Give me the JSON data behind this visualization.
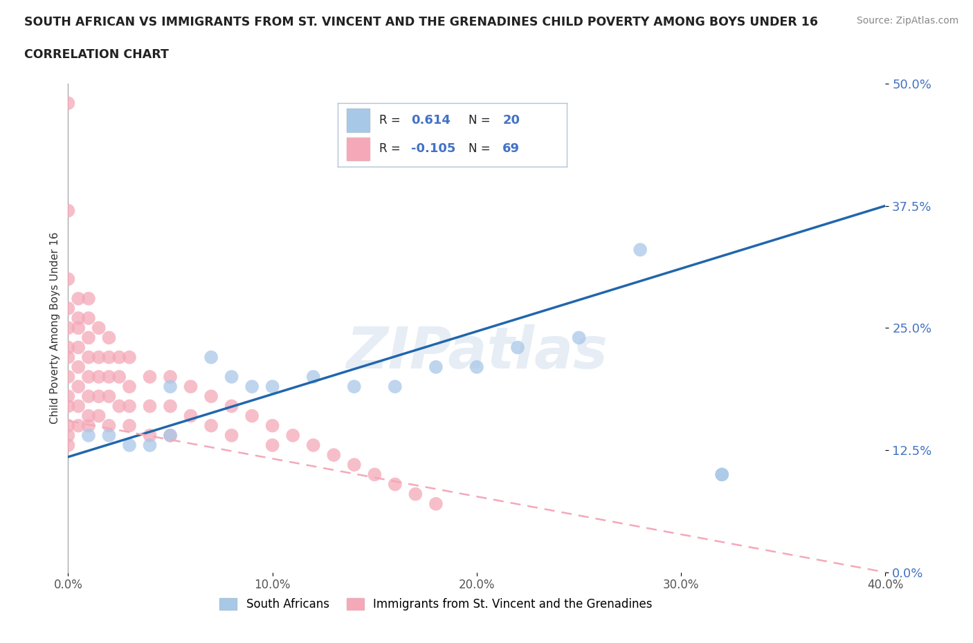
{
  "title": "SOUTH AFRICAN VS IMMIGRANTS FROM ST. VINCENT AND THE GRENADINES CHILD POVERTY AMONG BOYS UNDER 16",
  "subtitle": "CORRELATION CHART",
  "source": "Source: ZipAtlas.com",
  "ylabel": "Child Poverty Among Boys Under 16",
  "xlim": [
    0.0,
    0.4
  ],
  "ylim": [
    0.0,
    0.5
  ],
  "yticks": [
    0.0,
    0.125,
    0.25,
    0.375,
    0.5
  ],
  "ytick_labels": [
    "0.0%",
    "12.5%",
    "25.0%",
    "37.5%",
    "50.0%"
  ],
  "xticks": [
    0.0,
    0.1,
    0.2,
    0.3,
    0.4
  ],
  "xtick_labels": [
    "0.0%",
    "10.0%",
    "20.0%",
    "30.0%",
    "40.0%"
  ],
  "blue_color": "#a8c8e8",
  "pink_color": "#f4a8b8",
  "blue_line_color": "#2166ac",
  "pink_line_color": "#f4a8b8",
  "legend_blue_label": "South Africans",
  "legend_pink_label": "Immigrants from St. Vincent and the Grenadines",
  "r_blue": 0.614,
  "n_blue": 20,
  "r_pink": -0.105,
  "n_pink": 69,
  "blue_scatter_x": [
    0.01,
    0.02,
    0.03,
    0.04,
    0.05,
    0.05,
    0.07,
    0.08,
    0.09,
    0.1,
    0.12,
    0.14,
    0.16,
    0.18,
    0.2,
    0.22,
    0.25,
    0.28,
    0.32,
    0.32
  ],
  "blue_scatter_y": [
    0.14,
    0.14,
    0.13,
    0.13,
    0.14,
    0.19,
    0.22,
    0.2,
    0.19,
    0.19,
    0.2,
    0.19,
    0.19,
    0.21,
    0.21,
    0.23,
    0.24,
    0.33,
    0.1,
    0.1
  ],
  "pink_scatter_x": [
    0.0,
    0.0,
    0.0,
    0.0,
    0.0,
    0.0,
    0.0,
    0.0,
    0.0,
    0.0,
    0.0,
    0.0,
    0.005,
    0.005,
    0.005,
    0.005,
    0.005,
    0.005,
    0.005,
    0.005,
    0.01,
    0.01,
    0.01,
    0.01,
    0.01,
    0.01,
    0.01,
    0.01,
    0.015,
    0.015,
    0.015,
    0.015,
    0.015,
    0.02,
    0.02,
    0.02,
    0.02,
    0.02,
    0.025,
    0.025,
    0.025,
    0.03,
    0.03,
    0.03,
    0.03,
    0.04,
    0.04,
    0.04,
    0.05,
    0.05,
    0.05,
    0.06,
    0.06,
    0.07,
    0.07,
    0.08,
    0.08,
    0.09,
    0.1,
    0.1,
    0.11,
    0.12,
    0.13,
    0.14,
    0.15,
    0.16,
    0.17,
    0.18,
    0.0
  ],
  "pink_scatter_y": [
    0.48,
    0.37,
    0.3,
    0.27,
    0.25,
    0.23,
    0.22,
    0.2,
    0.18,
    0.17,
    0.15,
    0.14,
    0.28,
    0.26,
    0.25,
    0.23,
    0.21,
    0.19,
    0.17,
    0.15,
    0.28,
    0.26,
    0.24,
    0.22,
    0.2,
    0.18,
    0.16,
    0.15,
    0.25,
    0.22,
    0.2,
    0.18,
    0.16,
    0.24,
    0.22,
    0.2,
    0.18,
    0.15,
    0.22,
    0.2,
    0.17,
    0.22,
    0.19,
    0.17,
    0.15,
    0.2,
    0.17,
    0.14,
    0.2,
    0.17,
    0.14,
    0.19,
    0.16,
    0.18,
    0.15,
    0.17,
    0.14,
    0.16,
    0.15,
    0.13,
    0.14,
    0.13,
    0.12,
    0.11,
    0.1,
    0.09,
    0.08,
    0.07,
    0.13
  ],
  "watermark": "ZIPatlas",
  "title_color": "#222222",
  "axis_label_color": "#4472c4",
  "tick_label_color": "#4472c4",
  "grid_color": "#cccccc",
  "background_color": "#ffffff",
  "blue_line_start_x": 0.0,
  "blue_line_start_y": 0.118,
  "blue_line_end_x": 0.4,
  "blue_line_end_y": 0.375,
  "pink_line_start_x": 0.0,
  "pink_line_start_y": 0.155,
  "pink_line_end_x": 0.4,
  "pink_line_end_y": 0.0
}
